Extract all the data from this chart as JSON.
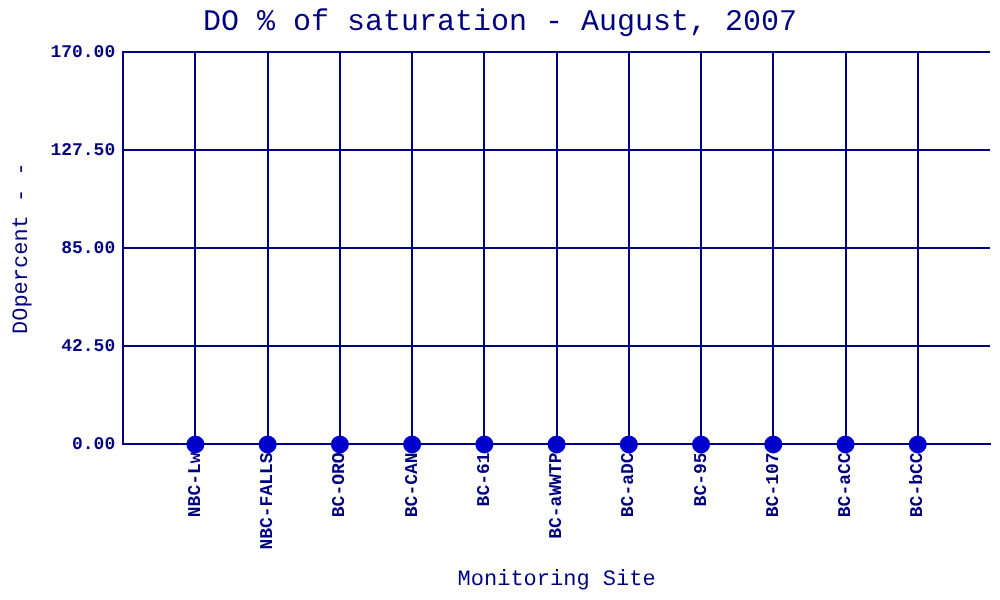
{
  "chart_data": {
    "type": "scatter",
    "title": "DO % of saturation - August, 2007",
    "xlabel": "Monitoring Site",
    "ylabel": "DOpercent - -",
    "categories": [
      "NBC-Lw",
      "NBC-FALLS",
      "BC-ORO",
      "BC-CAN",
      "BC-61",
      "BC-aWWTP",
      "BC-aDC",
      "BC-95",
      "BC-107",
      "BC-aCC",
      "BC-bCC"
    ],
    "series": [
      {
        "color": "#0000cc",
        "values": [
          0,
          0,
          0,
          0,
          0,
          0,
          0,
          0,
          0,
          0,
          0
        ]
      }
    ],
    "ylim": [
      0,
      170
    ],
    "yticks": [
      {
        "value": 0,
        "label": "0.00"
      },
      {
        "value": 42.5,
        "label": "42.50"
      },
      {
        "value": 85,
        "label": "85.00"
      },
      {
        "value": 127.5,
        "label": "127.50"
      },
      {
        "value": 170,
        "label": "170.00"
      }
    ],
    "grid": true,
    "legend": false,
    "marker": "circle"
  }
}
